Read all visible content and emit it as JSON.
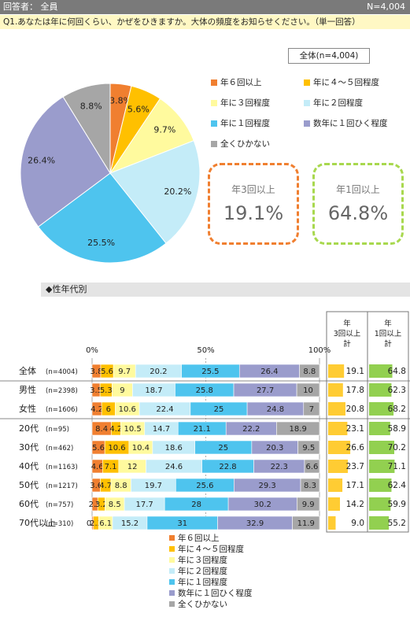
{
  "header": {
    "respondent_label": "回答者： 全員",
    "n_label": "N=4,004"
  },
  "question": "Q1.あなたは年に何回くらい、かぜをひきますか。大体の頻度をお知らせください。（単一回答）",
  "total_label": "全体(n=4,004)",
  "section_label": "◆性年代別",
  "kpi": [
    {
      "title": "年3回以上",
      "value": "19.1%",
      "color": "#f07f30"
    },
    {
      "title": "年1回以上",
      "value": "64.8%",
      "color": "#a8d84e"
    }
  ],
  "colors": [
    "#f07f30",
    "#ffc000",
    "#fffa9e",
    "#c4ecf8",
    "#4ec4ee",
    "#9a9ccc",
    "#a6a6a6"
  ],
  "chart_data": [
    {
      "type": "pie",
      "categories": [
        "年６回以上",
        "年に４～５回程度",
        "年に３回程度",
        "年に２回程度",
        "年に１回程度",
        "数年に１回ひく程度",
        "全くひかない"
      ],
      "values": [
        3.8,
        5.6,
        9.7,
        20.2,
        25.5,
        26.4,
        8.8
      ],
      "labels": [
        "3.8%",
        "5.6%",
        "9.7%",
        "20.2%",
        "25.5%",
        "26.4%",
        "8.8%"
      ],
      "legend": "right"
    },
    {
      "type": "bar",
      "orientation": "horizontal",
      "stacked": true,
      "xlim": [
        0,
        100
      ],
      "x_ticks": [
        "0%",
        "50%",
        "100%"
      ],
      "rows": [
        {
          "name": "全体",
          "n": "(n=4004)",
          "values": [
            3.8,
            5.6,
            9.7,
            20.2,
            25.5,
            26.4,
            8.8
          ],
          "labels": [
            "3.8",
            "5.6",
            "9.7",
            "20.2",
            "25.5",
            "26.4",
            "8.8"
          ],
          "sum3": "19.1",
          "sum1": "64.8"
        },
        {
          "name": "男性",
          "n": "(n=2398)",
          "values": [
            3.5,
            5.3,
            9,
            18.7,
            25.8,
            27.7,
            10
          ],
          "labels": [
            "3.5",
            "5.3",
            "9",
            "18.7",
            "25.8",
            "27.7",
            "10"
          ],
          "sum3": "17.8",
          "sum1": "62.3"
        },
        {
          "name": "女性",
          "n": "(n=1606)",
          "values": [
            4.2,
            6,
            10.6,
            22.4,
            25,
            24.8,
            7
          ],
          "labels": [
            "4.2",
            "6",
            "10.6",
            "22.4",
            "25",
            "24.8",
            "7"
          ],
          "sum3": "20.8",
          "sum1": "68.2"
        },
        {
          "name": "20代",
          "n": "(n=95)",
          "values": [
            8.4,
            4.2,
            10.5,
            14.7,
            21.1,
            22.2,
            18.9
          ],
          "labels": [
            "8.4",
            "4.2",
            "10.5",
            "14.7",
            "21.1",
            "22.2",
            "18.9"
          ],
          "sum3": "23.1",
          "sum1": "58.9"
        },
        {
          "name": "30代",
          "n": "(n=462)",
          "values": [
            5.6,
            10.6,
            10.4,
            18.6,
            25,
            20.3,
            9.5
          ],
          "labels": [
            "5.6",
            "10.6",
            "10.4",
            "18.6",
            "25",
            "20.3",
            "9.5"
          ],
          "sum3": "26.6",
          "sum1": "70.2"
        },
        {
          "name": "40代",
          "n": "(n=1163)",
          "values": [
            4.6,
            7.1,
            12,
            24.6,
            22.8,
            22.3,
            6.6
          ],
          "labels": [
            "4.6",
            "7.1",
            "12",
            "24.6",
            "22.8",
            "22.3",
            "6.6"
          ],
          "sum3": "23.7",
          "sum1": "71.1"
        },
        {
          "name": "50代",
          "n": "(n=1217)",
          "values": [
            3.6,
            4.7,
            8.8,
            19.7,
            25.6,
            29.3,
            8.3
          ],
          "labels": [
            "3.6",
            "4.7",
            "8.8",
            "19.7",
            "25.6",
            "29.3",
            "8.3"
          ],
          "sum3": "17.1",
          "sum1": "62.4"
        },
        {
          "name": "60代",
          "n": "(n=757)",
          "values": [
            2.5,
            3.2,
            8.5,
            17.7,
            28,
            30.2,
            9.9
          ],
          "labels": [
            "2.5",
            "3.2",
            "8.5",
            "17.7",
            "28",
            "30.2",
            "9.9"
          ],
          "sum3": "14.2",
          "sum1": "59.9"
        },
        {
          "name": "70代以上",
          "n": "(n=310)",
          "values": [
            0.6,
            2.3,
            6.1,
            15.2,
            31,
            32.9,
            11.9
          ],
          "labels": [
            "0.6",
            "2.3",
            "6.1",
            "15.2",
            "31",
            "32.9",
            "11.9"
          ],
          "sum3": "9.0",
          "sum1": "55.2"
        }
      ],
      "sum_headers": [
        {
          "lines": [
            "年",
            "3回以上",
            "計"
          ]
        },
        {
          "lines": [
            "年",
            "1回以上",
            "計"
          ]
        }
      ],
      "legend": "bottom"
    }
  ]
}
